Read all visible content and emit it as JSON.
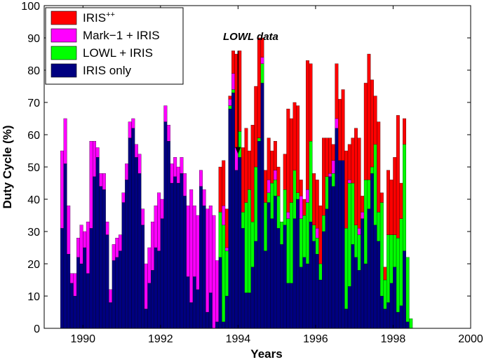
{
  "chart_data": {
    "type": "bar",
    "stacked": true,
    "xlabel": "Years",
    "ylabel": "Duty Cycle (%)",
    "xlim": [
      1989,
      2000
    ],
    "ylim": [
      0,
      100
    ],
    "x_ticks": [
      1990,
      1992,
      1994,
      1996,
      1998,
      2000
    ],
    "y_ticks": [
      0,
      10,
      20,
      30,
      40,
      50,
      60,
      70,
      80,
      90,
      100
    ],
    "bar_start": 1989.42,
    "bar_width_years": 0.0833,
    "legend": {
      "placement": "top-left",
      "entries": [
        {
          "key": "iris_pp",
          "label": "IRIS",
          "sup": "++",
          "color": "#ff0000"
        },
        {
          "key": "mark1",
          "label": "Mark−1 + IRIS",
          "sup": "",
          "color": "#ff00ff"
        },
        {
          "key": "lowl",
          "label": "LOWL + IRIS",
          "sup": "",
          "color": "#00ff00"
        },
        {
          "key": "iris_only",
          "label": "IRIS only",
          "sup": "",
          "color": "#000080"
        }
      ]
    },
    "annotation": {
      "text": "LOWL data",
      "x": 1994.0,
      "y_from": 86,
      "y_to": 54
    },
    "series": [
      {
        "name": "IRIS only",
        "color": "#000080",
        "values": [
          31,
          51,
          23,
          14,
          10,
          22,
          20,
          25,
          17,
          31,
          47,
          53,
          44,
          43,
          29,
          8,
          21,
          22,
          24,
          39,
          46,
          59,
          62,
          53,
          48,
          32,
          6,
          14,
          18,
          25,
          24,
          34,
          64,
          58,
          45,
          47,
          45,
          48,
          41,
          16,
          8,
          16,
          12,
          44,
          38,
          5,
          11,
          0,
          2,
          22,
          2,
          10,
          68,
          73,
          49,
          53,
          31,
          11,
          11,
          19,
          27,
          58,
          76,
          24,
          39,
          34,
          41,
          31,
          26,
          32,
          14,
          14,
          34,
          40,
          19,
          22,
          20,
          33,
          27,
          23,
          15,
          30,
          37,
          47,
          44,
          62,
          52,
          52,
          6,
          13,
          26,
          22,
          18,
          34,
          20,
          37,
          48,
          32,
          27,
          10,
          6,
          8,
          14,
          19,
          5,
          7,
          24,
          2,
          0
        ]
      },
      {
        "name": "LOWL + IRIS",
        "color": "#00ff00",
        "values": [
          0,
          0,
          0,
          0,
          0,
          0,
          0,
          0,
          0,
          0,
          0,
          0,
          0,
          0,
          0,
          0,
          0,
          0,
          0,
          0,
          0,
          0,
          0,
          0,
          0,
          0,
          0,
          0,
          0,
          0,
          0,
          0,
          0,
          0,
          0,
          0,
          0,
          0,
          0,
          0,
          0,
          0,
          0,
          0,
          0,
          0,
          0,
          0,
          0,
          14,
          30,
          14,
          1,
          1,
          0,
          8,
          5,
          28,
          32,
          14,
          23,
          1,
          6,
          15,
          3,
          11,
          5,
          10,
          7,
          11,
          20,
          25,
          15,
          2,
          15,
          13,
          19,
          25,
          5,
          5,
          5,
          5,
          10,
          0,
          4,
          0,
          0,
          0,
          25,
          32,
          19,
          10,
          11,
          0,
          26,
          9,
          2,
          25,
          9,
          29,
          9,
          21,
          15,
          10,
          23,
          27,
          33,
          20,
          3
        ]
      },
      {
        "name": "Mark−1 + IRIS",
        "color": "#ff00ff",
        "values": [
          24,
          14,
          15,
          3,
          7,
          6,
          12,
          5,
          16,
          27,
          11,
          3,
          4,
          5,
          4,
          4,
          5,
          6,
          5,
          3,
          5,
          5,
          3,
          4,
          6,
          5,
          14,
          11,
          15,
          13,
          18,
          6,
          5,
          5,
          6,
          6,
          5,
          5,
          7,
          22,
          35,
          22,
          23,
          5,
          5,
          32,
          27,
          35,
          19,
          0,
          6,
          1,
          2,
          5,
          7,
          0,
          0,
          0,
          0,
          0,
          0,
          0,
          2,
          0,
          4,
          0,
          3,
          0,
          0,
          0,
          2,
          0,
          0,
          0,
          7,
          0,
          4,
          0,
          0,
          3,
          0,
          0,
          0,
          1,
          4,
          3,
          0,
          0,
          0,
          1,
          0,
          0,
          2,
          2,
          0,
          0,
          0,
          0,
          0,
          0,
          0,
          0,
          0,
          0,
          0,
          0,
          0,
          0,
          0
        ]
      },
      {
        "name": "IRIS",
        "color": "#ff0000",
        "values": [
          0,
          0,
          0,
          0,
          0,
          0,
          0,
          0,
          0,
          0,
          0,
          0,
          0,
          0,
          0,
          0,
          0,
          0,
          0,
          0,
          0,
          0,
          0,
          0,
          0,
          0,
          0,
          0,
          0,
          0,
          0,
          0,
          0,
          0,
          0,
          0,
          0,
          0,
          0,
          0,
          0,
          0,
          0,
          0,
          0,
          0,
          0,
          0,
          0,
          14,
          14,
          12,
          1,
          7,
          29,
          25,
          20,
          23,
          12,
          30,
          25,
          31,
          6,
          10,
          13,
          10,
          9,
          9,
          0,
          11,
          32,
          26,
          21,
          27,
          5,
          5,
          40,
          24,
          16,
          15,
          18,
          24,
          12,
          11,
          5,
          17,
          19,
          22,
          24,
          11,
          14,
          30,
          28,
          5,
          30,
          39,
          27,
          15,
          28,
          3,
          4,
          20,
          17,
          24,
          38,
          11,
          8,
          0,
          0
        ]
      }
    ]
  }
}
